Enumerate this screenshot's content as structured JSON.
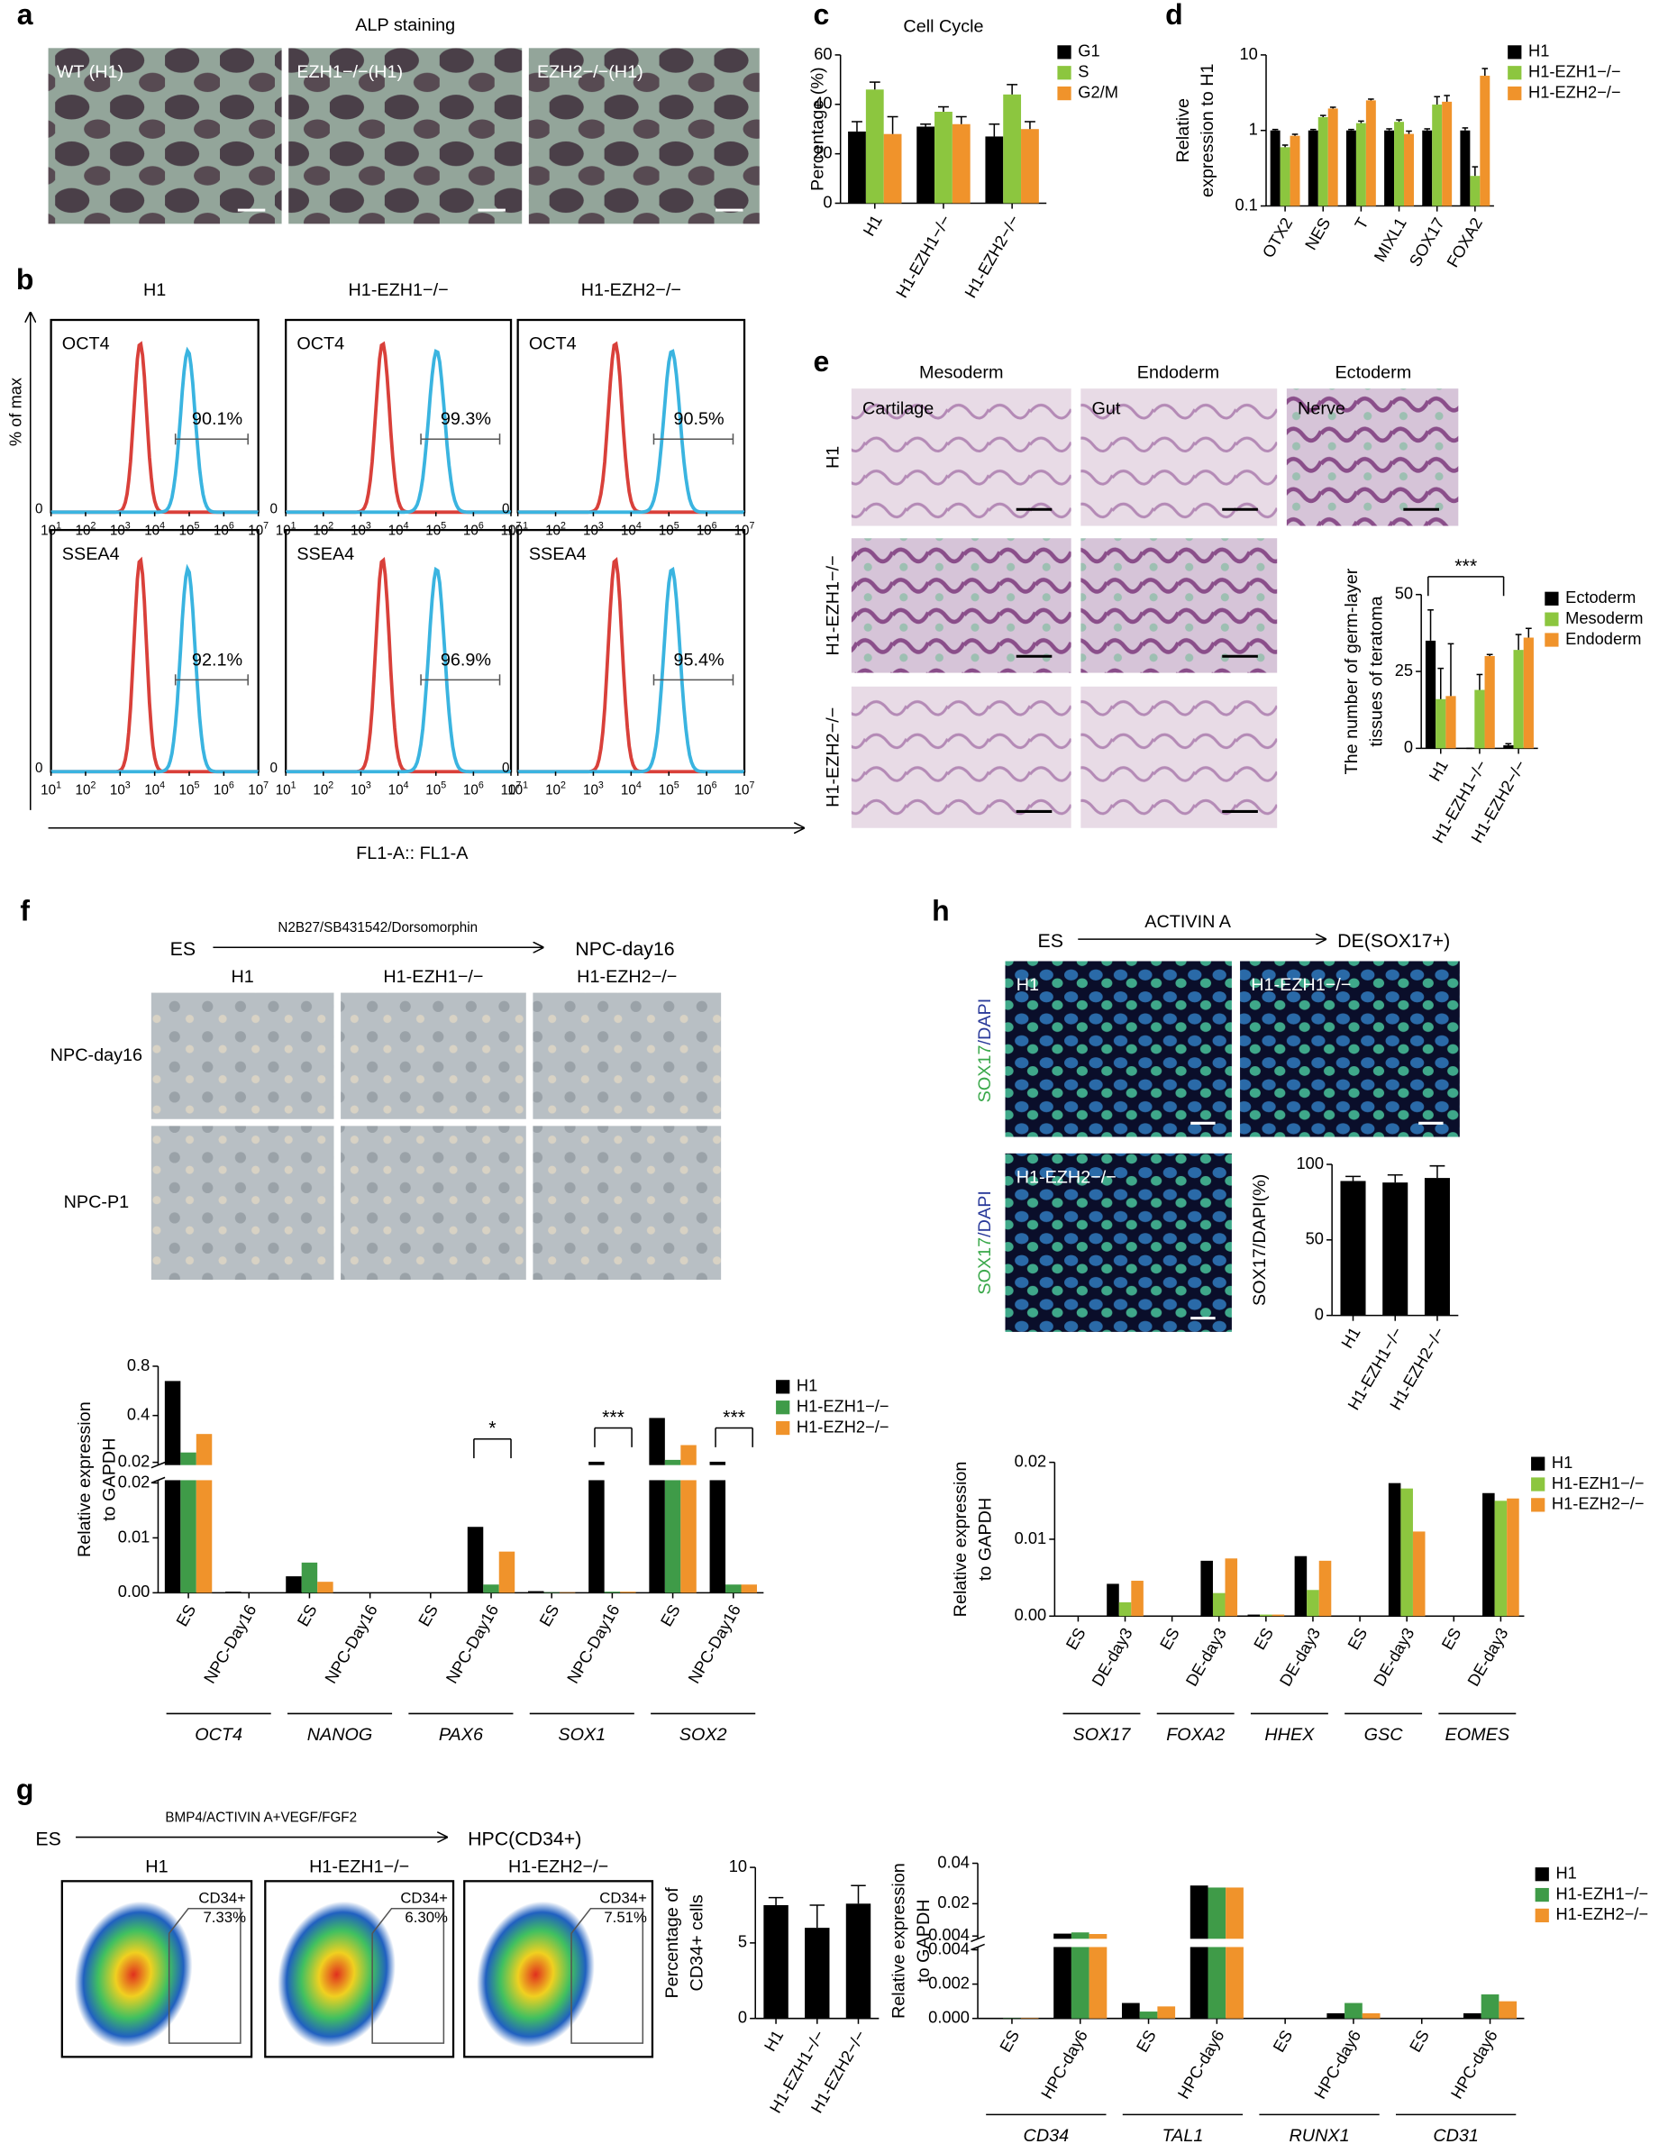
{
  "figure": {
    "panel_letters": [
      "a",
      "b",
      "c",
      "d",
      "e",
      "f",
      "g",
      "h"
    ],
    "a": {
      "title": "ALP staining",
      "labels": [
        "WT (H1)",
        "EZH1−/−(H1)",
        "EZH2−/−(H1)"
      ]
    },
    "b": {
      "columns": [
        "H1",
        "H1-EZH1−/−",
        "H1-EZH2−/−"
      ],
      "rows": [
        {
          "marker": "OCT4",
          "percents": [
            "90.1%",
            "99.3%",
            "90.5%"
          ]
        },
        {
          "marker": "SSEA4",
          "percents": [
            "92.1%",
            "96.9%",
            "95.4%"
          ]
        }
      ],
      "ylabel": "% of max",
      "xlabel": "FL1-A:: FL1-A",
      "xtick_base": "10",
      "xtick_exponents": [
        "1",
        "2",
        "3",
        "4",
        "5",
        "6",
        "7"
      ],
      "ytick": "0"
    },
    "e": {
      "columns": [
        "Mesoderm",
        "Endoderm",
        "Ectoderm"
      ],
      "tissues": [
        "Cartilage",
        "Gut",
        "Nerve"
      ],
      "rows": [
        "H1",
        "H1-EZH1−/−",
        "H1-EZH2−/−"
      ]
    },
    "f": {
      "start": "ES",
      "treatment": "N2B27/SB431542/Dorsomorphin",
      "end": "NPC-day16",
      "columns": [
        "H1",
        "H1-EZH1−/−",
        "H1-EZH2−/−"
      ],
      "rows": [
        "NPC-day16",
        "NPC-P1"
      ]
    },
    "h": {
      "start": "ES",
      "treatment": "ACTIVIN A",
      "end": "DE(SOX17+)",
      "labels": [
        "H1",
        "H1-EZH1−/−",
        "H1-EZH2−/−"
      ],
      "stain": [
        "SOX17",
        "/DAPI"
      ]
    },
    "g": {
      "start": "ES",
      "treatment": "BMP4/ACTIVIN A+VEGF/FGF2",
      "end": "HPC(CD34+)",
      "columns": [
        "H1",
        "H1-EZH1−/−",
        "H1-EZH2−/−"
      ],
      "gate": "CD34+",
      "percents": [
        "7.33%",
        "6.30%",
        "7.51%"
      ]
    }
  },
  "chart_data": [
    {
      "type": "bar",
      "title": "Cell Cycle",
      "ylabel": [
        "Percentage (%)"
      ],
      "categories": [
        "H1",
        "H1-EZH1−/−",
        "H1-EZH2−/−"
      ],
      "series": [
        {
          "name": "G1",
          "color": "#000000",
          "values": [
            29,
            31,
            27
          ],
          "errors": [
            4,
            1,
            5
          ]
        },
        {
          "name": "S",
          "color": "#8cc63f",
          "values": [
            46,
            37,
            44
          ],
          "errors": [
            3,
            2,
            4
          ]
        },
        {
          "name": "G2/M",
          "color": "#f0932b",
          "values": [
            28,
            32,
            30
          ],
          "errors": [
            7,
            3,
            3
          ]
        }
      ],
      "ylim": [
        0,
        60
      ],
      "yticks": [
        0,
        20,
        40,
        60
      ]
    },
    {
      "type": "bar",
      "log": true,
      "ylabel": [
        "Relative",
        "expression to H1"
      ],
      "categories": [
        "OTX2",
        "NES",
        "T",
        "MIXL1",
        "SOX17",
        "FOXA2"
      ],
      "series": [
        {
          "name": "H1",
          "color": "#000000",
          "values": [
            1,
            1,
            1,
            1,
            1,
            1
          ],
          "errors": [
            0.03,
            0.03,
            0.03,
            0.05,
            0.05,
            0.08
          ]
        },
        {
          "name": "H1-EZH1−/−",
          "color": "#8cc63f",
          "values": [
            0.6,
            1.5,
            1.25,
            1.3,
            2.2,
            0.25
          ],
          "errors": [
            0.04,
            0.08,
            0.08,
            0.08,
            0.6,
            0.08
          ]
        },
        {
          "name": "H1-EZH2−/−",
          "color": "#f0932b",
          "values": [
            0.85,
            1.95,
            2.5,
            0.9,
            2.4,
            5.3
          ],
          "errors": [
            0.04,
            0.08,
            0.1,
            0.08,
            0.5,
            1.3
          ]
        }
      ],
      "ylim": [
        0.1,
        10
      ],
      "yticks": [
        0.1,
        1,
        10
      ]
    },
    {
      "type": "bar",
      "ylabel": [
        "The number of germ-layer",
        "tissues of teratoma"
      ],
      "categories": [
        "H1",
        "H1-EZH1−/−",
        "H1-EZH2−/−"
      ],
      "series": [
        {
          "name": "Ectoderm",
          "color": "#000000",
          "values": [
            35,
            0,
            1
          ],
          "errors": [
            10,
            0,
            0.5
          ]
        },
        {
          "name": "Mesoderm",
          "color": "#8cc63f",
          "values": [
            16,
            19,
            32
          ],
          "errors": [
            10,
            5,
            5
          ]
        },
        {
          "name": "Endoderm",
          "color": "#f0932b",
          "values": [
            17,
            30,
            36
          ],
          "errors": [
            17,
            0.5,
            3
          ]
        }
      ],
      "ylim": [
        0,
        50
      ],
      "yticks": [
        0,
        25,
        50
      ],
      "annotations": [
        "***"
      ]
    },
    {
      "type": "bar",
      "ylabel": [
        "Relative expression",
        "to GAPDH"
      ],
      "categories": [
        "ES",
        "NPC-Day16",
        "ES",
        "NPC-Day16",
        "ES",
        "NPC-Day16",
        "ES",
        "NPC-Day16",
        "ES",
        "NPC-Day16"
      ],
      "groups": [
        "OCT4",
        "NANOG",
        "PAX6",
        "SOX1",
        "SOX2"
      ],
      "series": [
        {
          "name": "H1",
          "color": "#000000",
          "values": [
            0.68,
            0.0002,
            0.003,
            0,
            0,
            0.012,
            0.0003,
            0.025,
            0.38,
            0.025
          ]
        },
        {
          "name": "H1-EZH1−/−",
          "color": "#3f9b48",
          "values": [
            0.1,
            0,
            0.0055,
            0,
            0,
            0.0015,
            0.0001,
            0.0002,
            0.04,
            0.0015
          ]
        },
        {
          "name": "H1-EZH2−/−",
          "color": "#f0932b",
          "values": [
            0.25,
            0,
            0.002,
            0,
            0,
            0.0075,
            0.0001,
            0.0002,
            0.16,
            0.0015
          ]
        }
      ],
      "ylim": [
        0,
        0.8
      ],
      "ybreak": 0.02,
      "yticks": [
        {
          "value": 0,
          "label": "0.00"
        },
        0.01,
        0.02
      ],
      "yticks_upper": [
        0.02,
        0.4,
        0.8
      ],
      "annotations": [
        "*",
        "***",
        "***"
      ]
    },
    {
      "type": "bar",
      "ylabel": [
        "SOX17/DAPI(%)"
      ],
      "categories": [
        "H1",
        "H1-EZH1−/−",
        "H1-EZH2−/−"
      ],
      "series": [
        {
          "name": "SOX17/DAPI",
          "color": "#000000",
          "values": [
            89,
            88,
            91
          ],
          "errors": [
            3,
            5,
            8
          ]
        }
      ],
      "ylim": [
        0,
        100
      ],
      "yticks": [
        0,
        50,
        100
      ]
    },
    {
      "type": "bar",
      "ylabel": [
        "Relative expression",
        "to GAPDH"
      ],
      "categories": [
        "ES",
        "DE-day3",
        "ES",
        "DE-day3",
        "ES",
        "DE-day3",
        "ES",
        "DE-day3",
        "ES",
        "DE-day3"
      ],
      "groups": [
        "SOX17",
        "FOXA2",
        "HHEX",
        "GSC",
        "EOMES"
      ],
      "series": [
        {
          "name": "H1",
          "color": "#000000",
          "values": [
            0,
            0.0042,
            0,
            0.0072,
            0.0002,
            0.0078,
            0,
            0.0173,
            0,
            0.016
          ]
        },
        {
          "name": "H1-EZH1−/−",
          "color": "#8cc63f",
          "values": [
            0,
            0.0018,
            0,
            0.003,
            0.0002,
            0.0034,
            0,
            0.0166,
            0,
            0.015
          ]
        },
        {
          "name": "H1-EZH2−/−",
          "color": "#f0932b",
          "values": [
            0,
            0.0046,
            0,
            0.0075,
            0.0002,
            0.0072,
            0,
            0.011,
            0,
            0.0153
          ]
        }
      ],
      "ylim": [
        0,
        0.02
      ],
      "yticks": [
        {
          "value": 0,
          "label": "0.00"
        },
        0.01,
        0.02
      ]
    },
    {
      "type": "bar",
      "ylabel": [
        "Percentage of",
        "CD34+ cells"
      ],
      "categories": [
        "H1",
        "H1-EZH1−/−",
        "H1-EZH2−/−"
      ],
      "series": [
        {
          "name": "CD34+",
          "color": "#000000",
          "values": [
            7.5,
            6,
            7.6
          ],
          "errors": [
            0.5,
            1.5,
            1.2
          ]
        }
      ],
      "ylim": [
        0,
        10
      ],
      "yticks": [
        0,
        5,
        10
      ]
    },
    {
      "type": "bar",
      "ylabel": [
        "Relative expression",
        "to GAPDH"
      ],
      "categories": [
        "ES",
        "HPC-day6",
        "ES",
        "HPC-day6",
        "ES",
        "HPC-day6",
        "ES",
        "HPC-day6"
      ],
      "groups": [
        "CD34",
        "TAL1",
        "RUNX1",
        "CD31"
      ],
      "series": [
        {
          "name": "H1",
          "color": "#000000",
          "values": [
            3e-05,
            0.0052,
            0.0009,
            0.029,
            0,
            0.0003,
            0,
            0.0003
          ]
        },
        {
          "name": "H1-EZH1−/−",
          "color": "#3f9b48",
          "values": [
            2e-05,
            0.0058,
            0.0004,
            0.028,
            0,
            0.0009,
            0,
            0.0014
          ]
        },
        {
          "name": "H1-EZH2−/−",
          "color": "#f0932b",
          "values": [
            3e-05,
            0.005,
            0.0007,
            0.028,
            0,
            0.0003,
            0,
            0.001
          ]
        }
      ],
      "ylim": [
        0,
        0.04
      ],
      "ybreak": 0.004,
      "yticks": [
        {
          "value": 0,
          "label": "0.000"
        },
        0.002,
        0.004
      ],
      "yticks_upper": [
        0.004,
        0.02,
        0.04
      ]
    }
  ]
}
